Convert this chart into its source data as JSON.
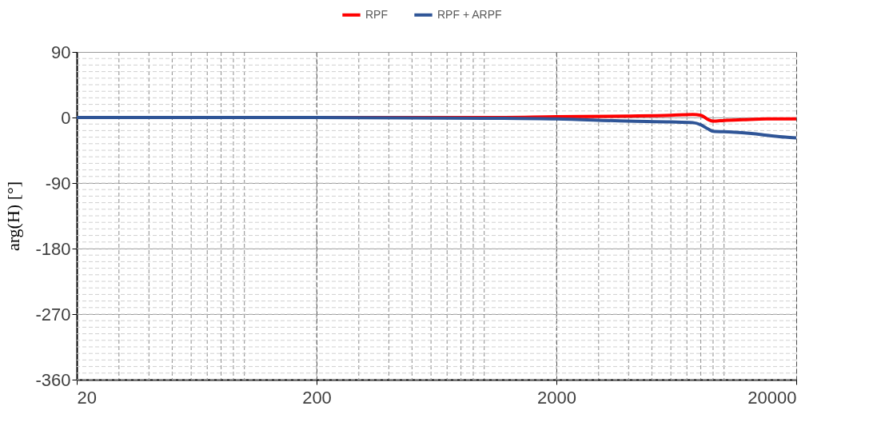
{
  "chart_data": {
    "type": "line",
    "ylabel": "arg(H) [°]",
    "log": "x",
    "xlim": [
      20,
      20000
    ],
    "xticks": [
      20,
      200,
      2000,
      20000
    ],
    "ylim": [
      -360,
      90
    ],
    "yticks": [
      -360,
      -270,
      -180,
      -90,
      0,
      90
    ],
    "grid": true,
    "legend": "top",
    "marker": "none",
    "line_style": "solid",
    "series": [
      {
        "name": "RPF",
        "color": "#ff0000",
        "x": [
          20,
          200,
          1000,
          2000,
          4000,
          6000,
          7400,
          8000,
          8600,
          9000,
          10000,
          12000,
          15000,
          20000
        ],
        "values": [
          0,
          0,
          0,
          1,
          2,
          3,
          4,
          3,
          -3,
          -5,
          -4,
          -3,
          -2,
          -2
        ]
      },
      {
        "name": "RPF + ARPF",
        "color": "#2f5597",
        "x": [
          20,
          200,
          1000,
          2000,
          4000,
          6000,
          7400,
          8000,
          8600,
          9000,
          10800,
          13000,
          15600,
          18000,
          20000
        ],
        "values": [
          0,
          0,
          -1,
          -2,
          -5,
          -6,
          -7,
          -10,
          -16,
          -19,
          -20,
          -22,
          -25,
          -27,
          -28
        ]
      }
    ]
  }
}
